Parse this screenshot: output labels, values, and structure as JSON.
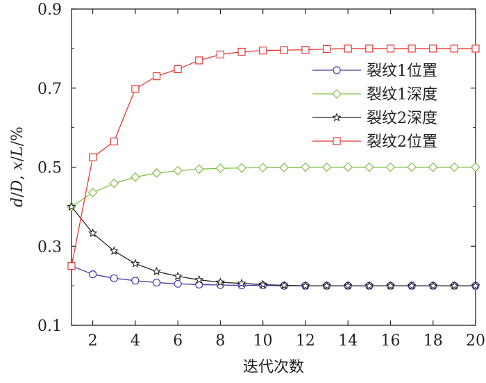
{
  "chart_data": {
    "type": "line",
    "title": "",
    "xlabel": "迭代次数",
    "ylabel": {
      "part1": "d",
      "part2": "/",
      "part3": "D",
      "part4": ", ",
      "part5": "x",
      "part6": "/",
      "part7": "L",
      "part8": "/%"
    },
    "xlim": [
      1,
      20
    ],
    "ylim": [
      0.1,
      0.9
    ],
    "x_ticks": [
      2,
      4,
      6,
      8,
      10,
      12,
      14,
      16,
      18,
      20
    ],
    "y_ticks": [
      0.1,
      0.3,
      0.5,
      0.7,
      0.9
    ],
    "y_tick_labels": [
      "0.1",
      "0.3",
      "0.5",
      "0.7",
      "0.9"
    ],
    "x": [
      1,
      2,
      3,
      4,
      5,
      6,
      7,
      8,
      9,
      10,
      11,
      12,
      13,
      14,
      15,
      16,
      17,
      18,
      19,
      20
    ],
    "legend_position": "top-right",
    "series": [
      {
        "name": "裂纹1位置",
        "color": "#3a3aa8",
        "marker": "circle",
        "values": [
          0.25,
          0.229,
          0.219,
          0.213,
          0.208,
          0.205,
          0.203,
          0.202,
          0.201,
          0.201,
          0.2,
          0.2,
          0.2,
          0.2,
          0.2,
          0.2,
          0.2,
          0.2,
          0.2,
          0.2
        ]
      },
      {
        "name": "裂纹1深度",
        "color": "#7bc043",
        "marker": "diamond",
        "values": [
          0.4,
          0.436,
          0.459,
          0.475,
          0.485,
          0.491,
          0.495,
          0.497,
          0.498,
          0.499,
          0.499,
          0.5,
          0.5,
          0.5,
          0.5,
          0.5,
          0.5,
          0.5,
          0.5,
          0.5
        ]
      },
      {
        "name": "裂纹2深度",
        "color": "#222222",
        "marker": "star",
        "values": [
          0.4,
          0.333,
          0.288,
          0.256,
          0.236,
          0.224,
          0.215,
          0.209,
          0.206,
          0.203,
          0.201,
          0.2,
          0.2,
          0.2,
          0.2,
          0.2,
          0.2,
          0.2,
          0.2,
          0.2
        ]
      },
      {
        "name": "裂纹2位置",
        "color": "#e53935",
        "marker": "square",
        "values": [
          0.25,
          0.525,
          0.565,
          0.698,
          0.73,
          0.748,
          0.77,
          0.785,
          0.792,
          0.795,
          0.796,
          0.797,
          0.799,
          0.8,
          0.8,
          0.8,
          0.8,
          0.8,
          0.8,
          0.8
        ]
      }
    ]
  }
}
